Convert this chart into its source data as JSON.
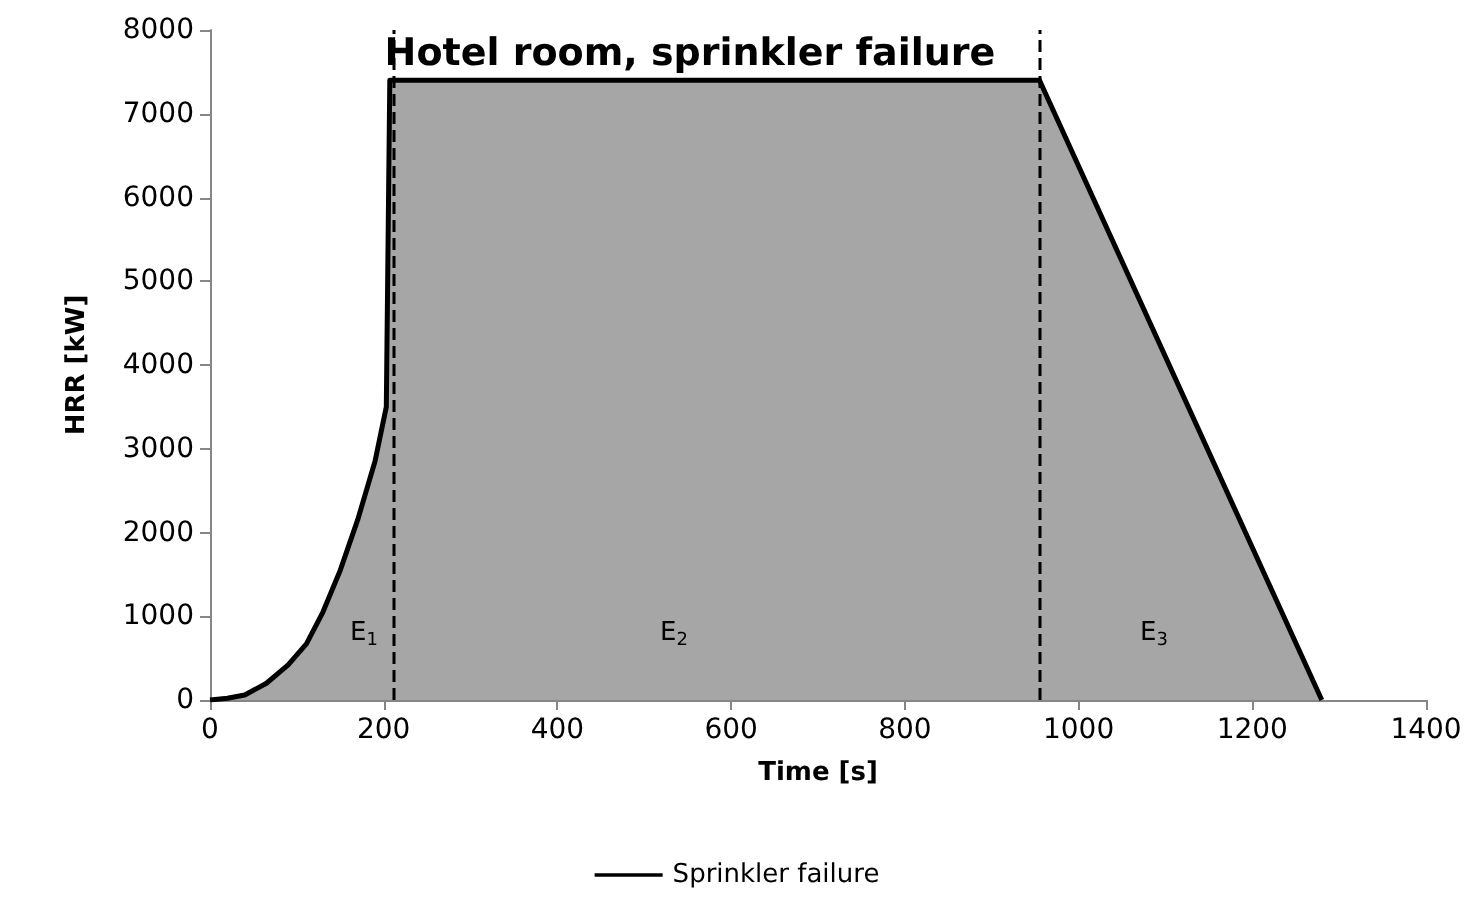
{
  "chart_data": {
    "type": "area",
    "title": "Hotel room, sprinkler failure",
    "xlabel": "Time [s]",
    "ylabel": "HRR [kW]",
    "series": [
      {
        "name": "Sprinkler failure",
        "color": "#000000",
        "x": [
          0,
          20,
          40,
          65,
          90,
          111,
          130,
          150,
          170,
          190,
          203,
          207,
          955,
          1280
        ],
        "values": [
          0,
          20,
          60,
          200,
          420,
          670,
          1050,
          1550,
          2150,
          2850,
          3500,
          7400,
          7400,
          0
        ]
      }
    ],
    "xlim": [
      0,
      1400
    ],
    "xticks": [
      0,
      200,
      400,
      600,
      800,
      1000,
      1200,
      1400
    ],
    "ylim": [
      0,
      8000
    ],
    "yticks": [
      0,
      1000,
      2000,
      3000,
      4000,
      5000,
      6000,
      7000,
      8000
    ],
    "ref_lines": [
      {
        "axis": "x",
        "value": 211,
        "color": "#000000",
        "line_style": "dashed"
      },
      {
        "axis": "x",
        "value": 955,
        "color": "#000000",
        "line_style": "dashed"
      }
    ],
    "annotations": [
      "E$_{1}$",
      "E$_{2}$",
      "E$_{3}$"
    ],
    "grid": false,
    "legend": "bottom",
    "marker": "none",
    "line_style": "solid"
  }
}
